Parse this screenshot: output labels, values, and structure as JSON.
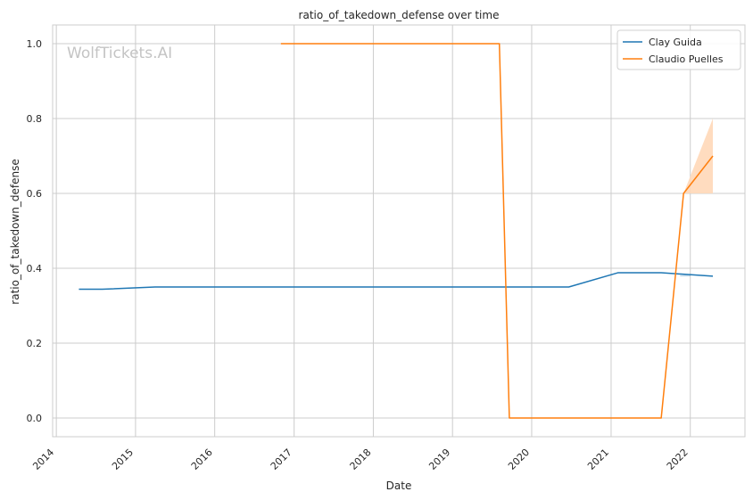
{
  "chart_data": {
    "type": "line",
    "title": "ratio_of_takedown_defense over time",
    "xlabel": "Date",
    "ylabel": "ratio_of_takedown_defense",
    "watermark": "WolfTickets.AI",
    "x_ticks": [
      "2014",
      "2015",
      "2016",
      "2017",
      "2018",
      "2019",
      "2020",
      "2021",
      "2022"
    ],
    "y_ticks": [
      "0.0",
      "0.2",
      "0.4",
      "0.6",
      "0.8",
      "1.0"
    ],
    "xlim": [
      "2013-12-15",
      "2022-09-10"
    ],
    "ylim": [
      -0.05,
      1.05
    ],
    "grid": true,
    "legend_position": "top-right",
    "series": [
      {
        "name": "Clay Guida",
        "color": "#1f77b4",
        "points": [
          {
            "x": "2014-04-15",
            "y": 0.344
          },
          {
            "x": "2014-08-01",
            "y": 0.344
          },
          {
            "x": "2015-04-01",
            "y": 0.35
          },
          {
            "x": "2020-06-20",
            "y": 0.35
          },
          {
            "x": "2021-02-01",
            "y": 0.388
          },
          {
            "x": "2021-08-20",
            "y": 0.388
          },
          {
            "x": "2022-04-15",
            "y": 0.379
          }
        ],
        "band": [
          {
            "x": "2021-11-15",
            "lo": 0.378,
            "hi": 0.382
          },
          {
            "x": "2022-01-01",
            "lo": 0.378,
            "hi": 0.382
          }
        ]
      },
      {
        "name": "Claudio Puelles",
        "color": "#ff7f0e",
        "points": [
          {
            "x": "2016-11-01",
            "y": 1.0
          },
          {
            "x": "2019-08-05",
            "y": 1.0
          },
          {
            "x": "2019-09-20",
            "y": 0.0
          },
          {
            "x": "2021-08-20",
            "y": 0.0
          },
          {
            "x": "2021-12-01",
            "y": 0.6
          },
          {
            "x": "2022-04-15",
            "y": 0.7
          }
        ],
        "band": [
          {
            "x": "2021-12-01",
            "lo": 0.6,
            "hi": 0.6
          },
          {
            "x": "2022-04-15",
            "lo": 0.6,
            "hi": 0.8
          }
        ],
        "band_color": "#ffd8b8"
      }
    ]
  }
}
